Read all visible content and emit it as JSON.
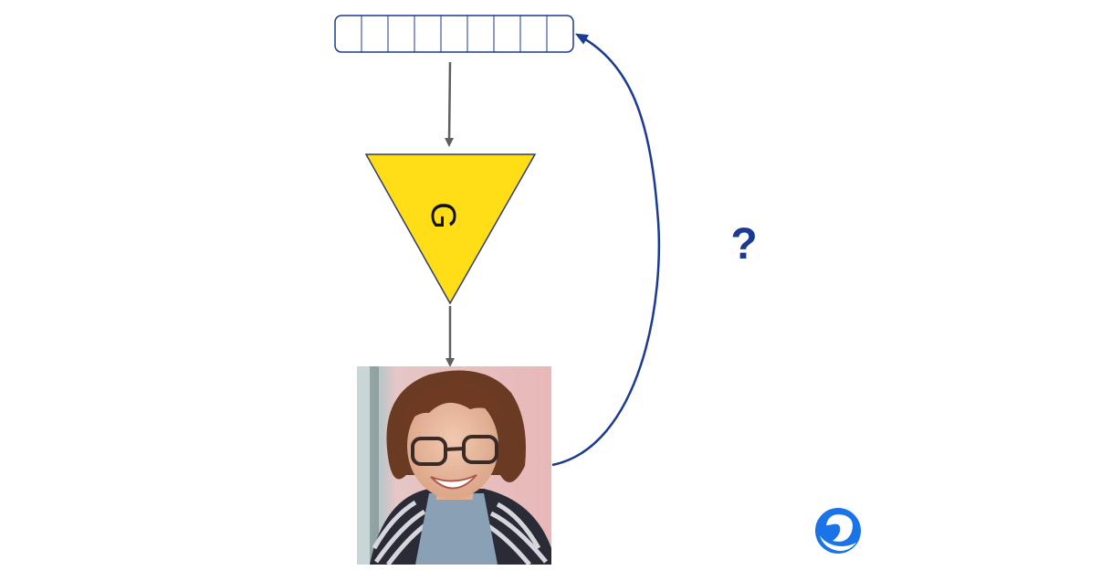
{
  "latent_vector": {
    "cell_count": 9,
    "border_color": "#1a3a8f"
  },
  "generator": {
    "label": "G",
    "fill_color": "#ffde17",
    "stroke_color": "#2f3b6b"
  },
  "feedback_arrow": {
    "color": "#1b3a94"
  },
  "flow_arrow_color": "#5f5f5f",
  "question": {
    "label": "?",
    "color": "#1b3a94"
  },
  "generated_image": {
    "subject": "photo-portrait"
  },
  "logo": {
    "name": "deepmind-logo",
    "color": "#1a73e8"
  }
}
